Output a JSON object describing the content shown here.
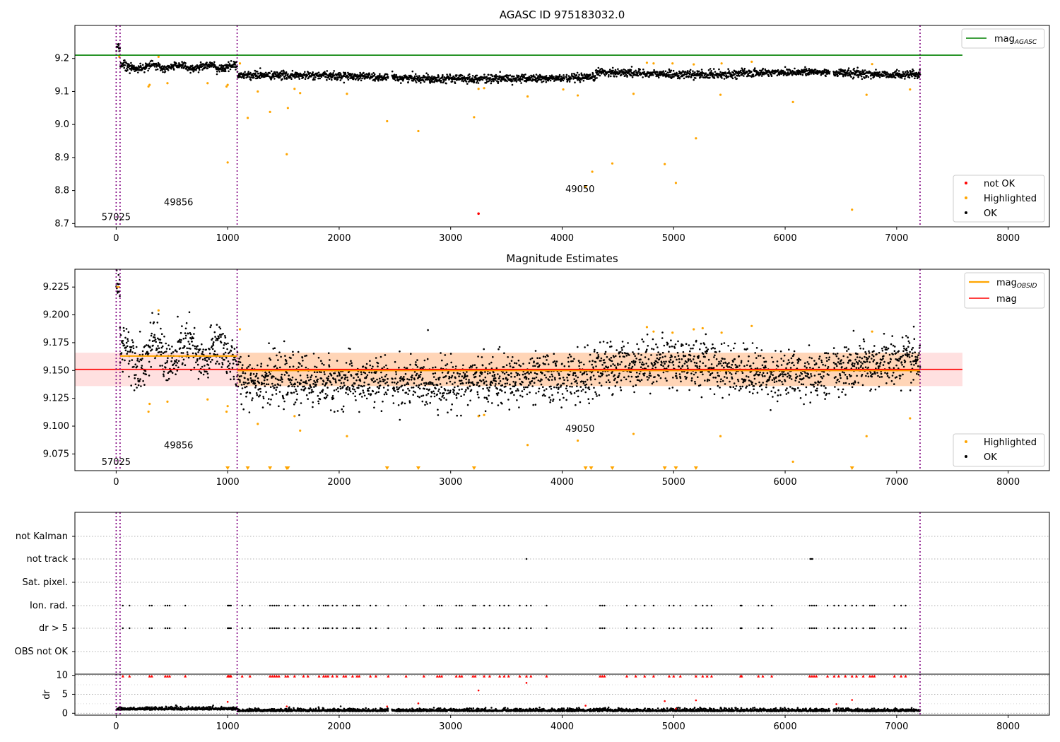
{
  "chart_data": [
    {
      "type": "scatter",
      "title": "AGASC ID 975183032.0",
      "xlim": [
        -370,
        8370
      ],
      "ylim": [
        8.69,
        9.3
      ],
      "yticks": [
        "9.2",
        "9.1",
        "9.0",
        "8.9",
        "8.8",
        "8.7"
      ],
      "ytick_values": [
        9.2,
        9.1,
        9.0,
        8.9,
        8.8,
        8.7
      ],
      "xticks": [
        "0",
        "1000",
        "2000",
        "3000",
        "4000",
        "5000",
        "6000",
        "7000",
        "8000"
      ],
      "xtick_values": [
        0,
        1000,
        2000,
        3000,
        4000,
        5000,
        6000,
        7000,
        8000
      ],
      "vlines": [
        0,
        35,
        1085,
        7210
      ],
      "hline": {
        "name": "mag",
        "sub": "AGASC",
        "y": 9.21,
        "x": [
          -370,
          7590
        ]
      },
      "legend_top": "mag AGASC",
      "legend_bottom": [
        "not OK",
        "Highlighted",
        "OK"
      ],
      "annotations": [
        {
          "text": "57025",
          "x": 0,
          "y": 8.71
        },
        {
          "text": "49856",
          "x": 560,
          "y": 8.755
        },
        {
          "text": "49050",
          "x": 4160,
          "y": 8.795
        }
      ],
      "band": {
        "mean": 9.15,
        "amp": 0.01
      },
      "highlighted": [
        [
          28,
          9.205
        ],
        [
          290,
          9.115
        ],
        [
          300,
          9.12
        ],
        [
          380,
          9.205
        ],
        [
          460,
          9.125
        ],
        [
          820,
          9.125
        ],
        [
          990,
          9.115
        ],
        [
          1000,
          9.12
        ],
        [
          1000,
          8.885
        ],
        [
          1110,
          9.185
        ],
        [
          1270,
          9.1
        ],
        [
          1180,
          9.02
        ],
        [
          1380,
          9.038
        ],
        [
          1530,
          8.91
        ],
        [
          1540,
          9.05
        ],
        [
          1600,
          9.108
        ],
        [
          1650,
          9.095
        ],
        [
          2070,
          9.093
        ],
        [
          2430,
          9.01
        ],
        [
          2710,
          8.98
        ],
        [
          3210,
          9.022
        ],
        [
          3250,
          9.108
        ],
        [
          3300,
          9.11
        ],
        [
          3690,
          9.085
        ],
        [
          4010,
          9.106
        ],
        [
          4140,
          9.088
        ],
        [
          4210,
          8.812
        ],
        [
          4270,
          8.857
        ],
        [
          4450,
          8.882
        ],
        [
          4640,
          9.093
        ],
        [
          4760,
          9.187
        ],
        [
          4820,
          9.185
        ],
        [
          4920,
          8.88
        ],
        [
          4990,
          9.185
        ],
        [
          5020,
          8.823
        ],
        [
          5200,
          8.958
        ],
        [
          5180,
          9.182
        ],
        [
          5420,
          9.09
        ],
        [
          5430,
          9.185
        ],
        [
          5700,
          9.19
        ],
        [
          6070,
          9.068
        ],
        [
          6600,
          8.742
        ],
        [
          6730,
          9.09
        ],
        [
          6780,
          9.183
        ],
        [
          7120,
          9.106
        ]
      ],
      "not_ok": [
        [
          3250,
          8.73
        ]
      ]
    },
    {
      "type": "scatter",
      "title": "Magnitude Estimates",
      "xlim": [
        -370,
        8370
      ],
      "ylim": [
        9.06,
        9.241
      ],
      "yticks": [
        "9.225",
        "9.200",
        "9.175",
        "9.150",
        "9.125",
        "9.100",
        "9.075"
      ],
      "ytick_values": [
        9.225,
        9.2,
        9.175,
        9.15,
        9.125,
        9.1,
        9.075
      ],
      "xticks": [
        "0",
        "1000",
        "2000",
        "3000",
        "4000",
        "5000",
        "6000",
        "7000",
        "8000"
      ],
      "xtick_values": [
        0,
        1000,
        2000,
        3000,
        4000,
        5000,
        6000,
        7000,
        8000
      ],
      "vlines": [
        0,
        35,
        1085,
        7210
      ],
      "mag_line": {
        "y": 9.151,
        "x": [
          -370,
          7590
        ],
        "band": [
          9.136,
          9.166
        ]
      },
      "obsid_segments": [
        [
          0,
          35,
          9.225
        ],
        [
          35,
          1085,
          9.163
        ],
        [
          1085,
          7210,
          9.15
        ]
      ],
      "legend_top": [
        "mag OBSID",
        "mag"
      ],
      "legend_bottom": [
        "Highlighted",
        "OK"
      ],
      "annotations": [
        {
          "text": "57025",
          "x": 0,
          "y": 9.065
        },
        {
          "text": "49856",
          "x": 560,
          "y": 9.08
        },
        {
          "text": "49050",
          "x": 4160,
          "y": 9.095
        }
      ],
      "highlighted": [
        [
          380,
          9.204
        ],
        [
          290,
          9.113
        ],
        [
          300,
          9.12
        ],
        [
          460,
          9.122
        ],
        [
          820,
          9.124
        ],
        [
          990,
          9.113
        ],
        [
          1000,
          9.118
        ],
        [
          1110,
          9.187
        ],
        [
          1270,
          9.102
        ],
        [
          1600,
          9.109
        ],
        [
          1650,
          9.096
        ],
        [
          2070,
          9.091
        ],
        [
          3250,
          9.109
        ],
        [
          3300,
          9.11
        ],
        [
          3690,
          9.083
        ],
        [
          4140,
          9.087
        ],
        [
          4640,
          9.093
        ],
        [
          4760,
          9.189
        ],
        [
          4820,
          9.185
        ],
        [
          4990,
          9.184
        ],
        [
          5180,
          9.187
        ],
        [
          5260,
          9.188
        ],
        [
          5420,
          9.091
        ],
        [
          5430,
          9.184
        ],
        [
          5700,
          9.19
        ],
        [
          6070,
          9.068
        ],
        [
          6730,
          9.091
        ],
        [
          6780,
          9.185
        ],
        [
          7120,
          9.107
        ]
      ],
      "below_range": [
        1000,
        1180,
        1380,
        1530,
        1540,
        2430,
        2710,
        3210,
        4210,
        4260,
        4450,
        4920,
        5020,
        5200,
        6600
      ]
    },
    {
      "type": "scatter",
      "title": "",
      "xlim": [
        -370,
        8370
      ],
      "categories": [
        "not Kalman",
        "not track",
        "Sat. pixel.",
        "Ion. rad.",
        "dr > 5",
        "OBS not OK"
      ],
      "ylabel": "dr",
      "dr_yticks": [
        "10",
        "5",
        "0"
      ],
      "dr_ytick_values": [
        10,
        5,
        0
      ],
      "dr_ylim": [
        -0.5,
        10.3
      ],
      "xticks": [
        "0",
        "1000",
        "2000",
        "3000",
        "4000",
        "5000",
        "6000",
        "7000",
        "8000"
      ],
      "xtick_values": [
        0,
        1000,
        2000,
        3000,
        4000,
        5000,
        6000,
        7000,
        8000
      ],
      "vlines": [
        0,
        35,
        1085,
        7210
      ],
      "not_track": [
        3680,
        6225,
        6235,
        6245
      ],
      "flag_times": [
        60,
        120,
        300,
        320,
        440,
        460,
        480,
        620,
        1000,
        1010,
        1020,
        1030,
        1130,
        1200,
        1380,
        1400,
        1420,
        1440,
        1460,
        1520,
        1540,
        1600,
        1680,
        1720,
        1820,
        1860,
        1880,
        1900,
        1940,
        1980,
        2040,
        2060,
        2120,
        2160,
        2180,
        2280,
        2330,
        2440,
        2600,
        2760,
        2880,
        2900,
        2920,
        3050,
        3080,
        3100,
        3200,
        3220,
        3300,
        3350,
        3440,
        3480,
        3520,
        3620,
        3680,
        3720,
        3860,
        4340,
        4360,
        4380,
        4580,
        4660,
        4740,
        4820,
        4960,
        5000,
        5060,
        5200,
        5260,
        5300,
        5340,
        5600,
        5610,
        5760,
        5800,
        5880,
        6220,
        6240,
        6260,
        6280,
        6380,
        6440,
        6480,
        6540,
        6600,
        6640,
        6700,
        6760,
        6780,
        6800,
        6980,
        7040,
        7080
      ],
      "dr_outliers": [
        [
          1000,
          3.0
        ],
        [
          1530,
          1.8
        ],
        [
          2430,
          1.8
        ],
        [
          2710,
          2.6
        ],
        [
          3250,
          6.0
        ],
        [
          3680,
          8.0
        ],
        [
          4210,
          2.0
        ],
        [
          4920,
          3.2
        ],
        [
          5020,
          1.2
        ],
        [
          5200,
          3.4
        ],
        [
          6460,
          2.4
        ],
        [
          6600,
          3.5
        ]
      ]
    }
  ]
}
